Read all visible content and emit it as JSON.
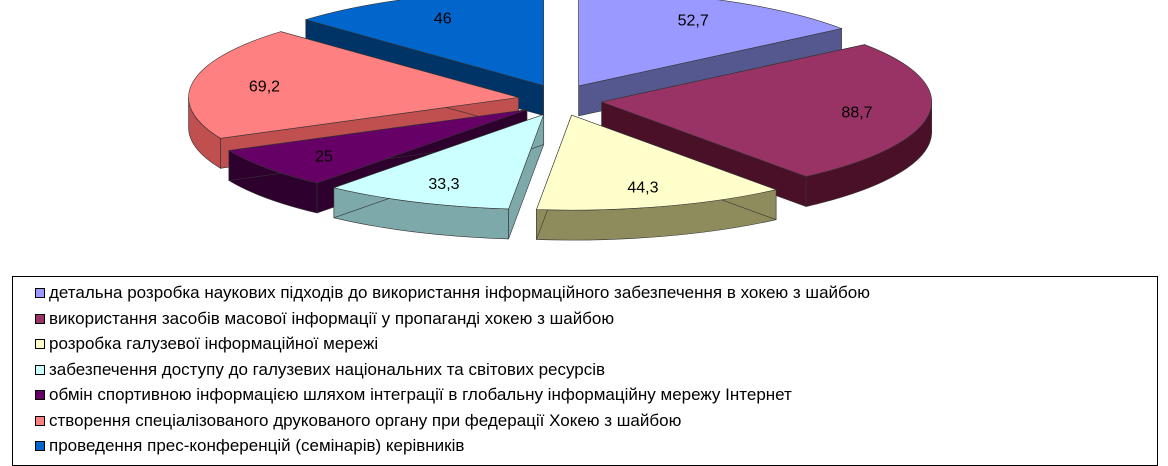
{
  "chart_data": {
    "type": "pie",
    "style": "3d-exploded",
    "legend_position": "bottom",
    "values": [
      52.7,
      88.7,
      44.3,
      33.3,
      25,
      69.2,
      46
    ],
    "value_labels": [
      "52,7",
      "88,7",
      "44,3",
      "33,3",
      "25",
      "69,2",
      "46"
    ],
    "series": [
      {
        "name": "детальна розробка наукових підходів до використання інформаційного забезпечення в хокею з шайбою",
        "color": "#9999ff",
        "side_color": "#55588f"
      },
      {
        "name": "використання засобів масової інформації у пропаганді хокею з шайбою",
        "color": "#993366",
        "side_color": "#4a1028"
      },
      {
        "name": "розробка галузевої інформаційної мережі",
        "color": "#ffffcc",
        "side_color": "#8e8c5c"
      },
      {
        "name": "забезпечення доступу до галузевих національних та світових ресурсів",
        "color": "#ccffff",
        "side_color": "#7ea9aa"
      },
      {
        "name": "обмін спортивною інформацією шляхом інтеграції в глобальну інформаційну мережу Інтернет",
        "color": "#660066",
        "side_color": "#2e002e"
      },
      {
        "name": "створення спеціалізованого друкованого органу при федерації Хокею з шайбою",
        "color": "#ff8080",
        "side_color": "#c04f4f"
      },
      {
        "name": "проведення прес-конференцій (семінарів) керівників",
        "color": "#0066cc",
        "side_color": "#003366"
      }
    ]
  }
}
